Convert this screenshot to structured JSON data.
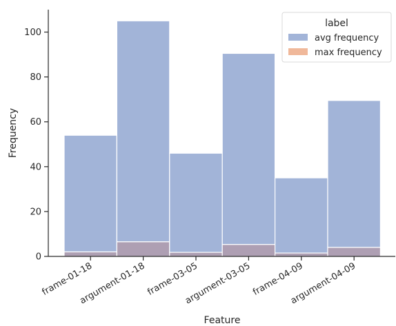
{
  "chart_data": {
    "type": "bar",
    "title": "",
    "xlabel": "Feature",
    "ylabel": "Frequency",
    "ylim": [
      0,
      110
    ],
    "yticks": [
      0,
      20,
      40,
      60,
      80,
      100
    ],
    "categories": [
      "frame-01-18",
      "argument-01-18",
      "frame-03-05",
      "argument-03-05",
      "frame-04-09",
      "argument-04-09"
    ],
    "series": [
      {
        "name": "avg frequency",
        "color": "#a2b4d8",
        "values": [
          54,
          105,
          46,
          90.5,
          35,
          69.5
        ]
      },
      {
        "name": "max frequency",
        "color": "#f0b89a",
        "values": [
          2,
          6.5,
          1.8,
          5.3,
          1.5,
          4
        ]
      }
    ],
    "overlap_color": "#ae9fb3",
    "legend": {
      "title": "label",
      "placement": "top-right"
    },
    "grid": false
  }
}
